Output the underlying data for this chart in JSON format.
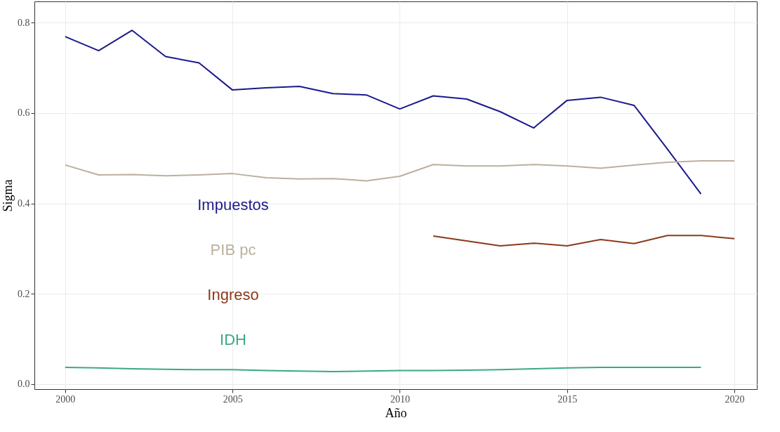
{
  "chart_data": {
    "type": "line",
    "xlabel": "Año",
    "ylabel": "Sigma",
    "x": [
      2000,
      2001,
      2002,
      2003,
      2004,
      2005,
      2006,
      2007,
      2008,
      2009,
      2010,
      2011,
      2012,
      2013,
      2014,
      2015,
      2016,
      2017,
      2018,
      2019,
      2020
    ],
    "series": [
      {
        "name": "Impuestos",
        "color": "#1a1a8c",
        "values": [
          0.769,
          0.738,
          0.783,
          0.725,
          0.711,
          0.651,
          0.656,
          0.659,
          0.643,
          0.64,
          0.609,
          0.638,
          0.631,
          0.603,
          0.567,
          0.628,
          0.635,
          0.617,
          0.52,
          0.421,
          null
        ]
      },
      {
        "name": "PIB pc",
        "color": "#bcb09e",
        "values": [
          0.485,
          0.463,
          0.464,
          0.461,
          0.463,
          0.466,
          0.457,
          0.454,
          0.455,
          0.45,
          0.46,
          0.486,
          0.483,
          0.483,
          0.486,
          0.483,
          0.478,
          0.485,
          0.491,
          0.494,
          0.494
        ]
      },
      {
        "name": "Ingreso",
        "color": "#8b3a1a",
        "values": [
          null,
          null,
          null,
          null,
          null,
          null,
          null,
          null,
          null,
          null,
          null,
          0.328,
          0.317,
          0.306,
          0.312,
          0.306,
          0.32,
          0.311,
          0.329,
          0.329,
          0.322
        ]
      },
      {
        "name": "IDH",
        "color": "#3aaa80",
        "values": [
          0.037,
          0.036,
          0.034,
          0.033,
          0.032,
          0.032,
          0.03,
          0.029,
          0.028,
          0.029,
          0.03,
          0.03,
          0.031,
          0.032,
          0.034,
          0.036,
          0.037,
          0.037,
          0.037,
          0.037,
          null
        ]
      }
    ],
    "xlim": [
      1999.08,
      2020.67
    ],
    "ylim": [
      -0.011,
      0.847
    ],
    "xticks": [
      2000,
      2005,
      2010,
      2015,
      2020
    ],
    "yticks": [
      {
        "value": 0,
        "label": "0.0"
      },
      0.2,
      0.4,
      0.6,
      0.8
    ],
    "grid": true,
    "legend": "left",
    "line_style": "solid",
    "marker": "none"
  }
}
